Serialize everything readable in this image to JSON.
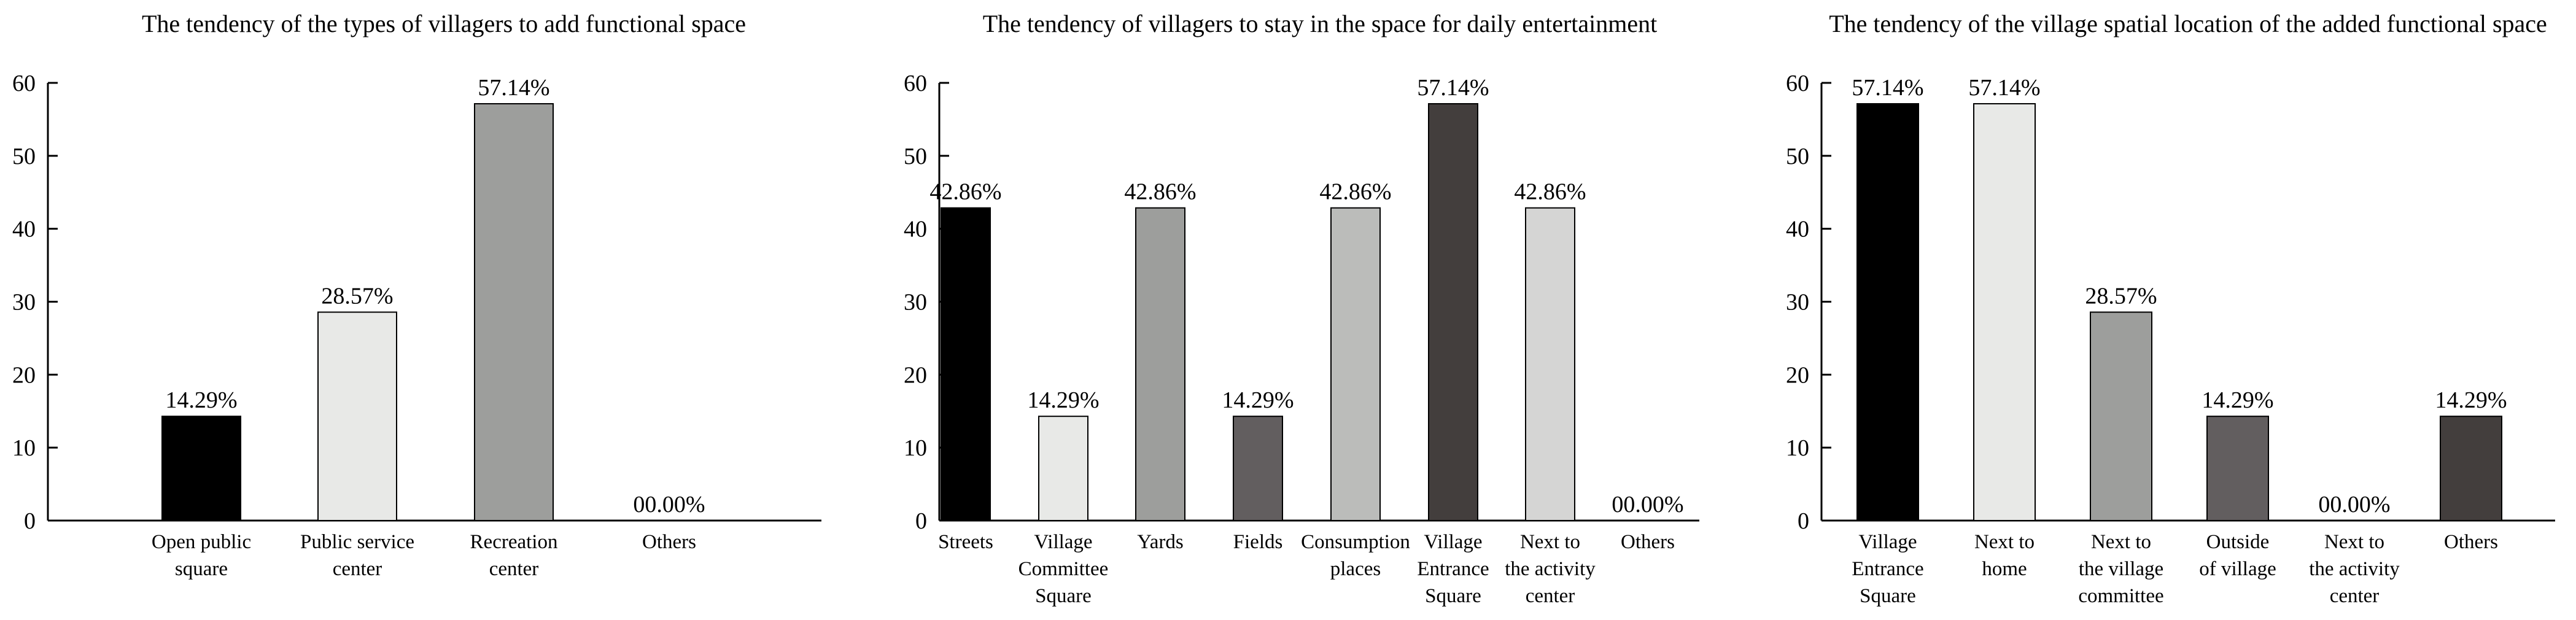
{
  "chart_data": [
    {
      "type": "bar",
      "title": "The tendency of the types of villagers to add functional space",
      "xlabel": "",
      "ylabel": "",
      "ylim": [
        0,
        60
      ],
      "yticks": [
        "0",
        "10",
        "20",
        "30",
        "40",
        "50",
        "60"
      ],
      "categories": [
        [
          "Open public",
          "square"
        ],
        [
          "Public service",
          "center"
        ],
        [
          "Recreation",
          "center"
        ],
        [
          "Others"
        ]
      ],
      "values": [
        14.29,
        28.57,
        57.14,
        0
      ],
      "labels": [
        "14.29%",
        "28.57%",
        "57.14%",
        "00.00%"
      ],
      "colors": [
        "#000000",
        "#e8e9e7",
        "#9d9e9c",
        "#ffffff"
      ]
    },
    {
      "type": "bar",
      "title": "The tendency of villagers to stay in the space for daily entertainment",
      "xlabel": "",
      "ylabel": "",
      "ylim": [
        0,
        60
      ],
      "yticks": [
        "0",
        "10",
        "20",
        "30",
        "40",
        "50",
        "60"
      ],
      "categories": [
        [
          "Streets"
        ],
        [
          "Village",
          "Committee",
          "Square"
        ],
        [
          "Yards"
        ],
        [
          "Fields"
        ],
        [
          "Consumption",
          "places"
        ],
        [
          "Village",
          "Entrance",
          "Square"
        ],
        [
          "Next to",
          "the activity",
          "center"
        ],
        [
          "Others"
        ]
      ],
      "values": [
        42.86,
        14.29,
        42.86,
        14.29,
        42.86,
        57.14,
        42.86,
        0
      ],
      "labels": [
        "42.86%",
        "14.29%",
        "42.86%",
        "14.29%",
        "42.86%",
        "57.14%",
        "42.86%",
        "00.00%"
      ],
      "colors": [
        "#000000",
        "#e8e9e7",
        "#9d9e9c",
        "#625e5f",
        "#bbbcba",
        "#433e3d",
        "#d5d5d4",
        "#ffffff"
      ]
    },
    {
      "type": "bar",
      "title": "The tendency of the village spatial location of the added functional space",
      "xlabel": "",
      "ylabel": "",
      "ylim": [
        0,
        60
      ],
      "yticks": [
        "0",
        "10",
        "20",
        "30",
        "40",
        "50",
        "60"
      ],
      "categories": [
        [
          "Village",
          "Entrance",
          "Square"
        ],
        [
          "Next to",
          "home"
        ],
        [
          "Next to",
          "the village",
          "committee"
        ],
        [
          "Outside",
          "of village"
        ],
        [
          "Next to",
          "the activity",
          "center"
        ],
        [
          "Others"
        ]
      ],
      "values": [
        57.14,
        57.14,
        28.57,
        14.29,
        0,
        14.29
      ],
      "labels": [
        "57.14%",
        "57.14%",
        "28.57%",
        "14.29%",
        "00.00%",
        "14.29%"
      ],
      "colors": [
        "#000000",
        "#e8e9e7",
        "#9d9e9c",
        "#625e5f",
        "#ffffff",
        "#433e3d"
      ]
    }
  ]
}
